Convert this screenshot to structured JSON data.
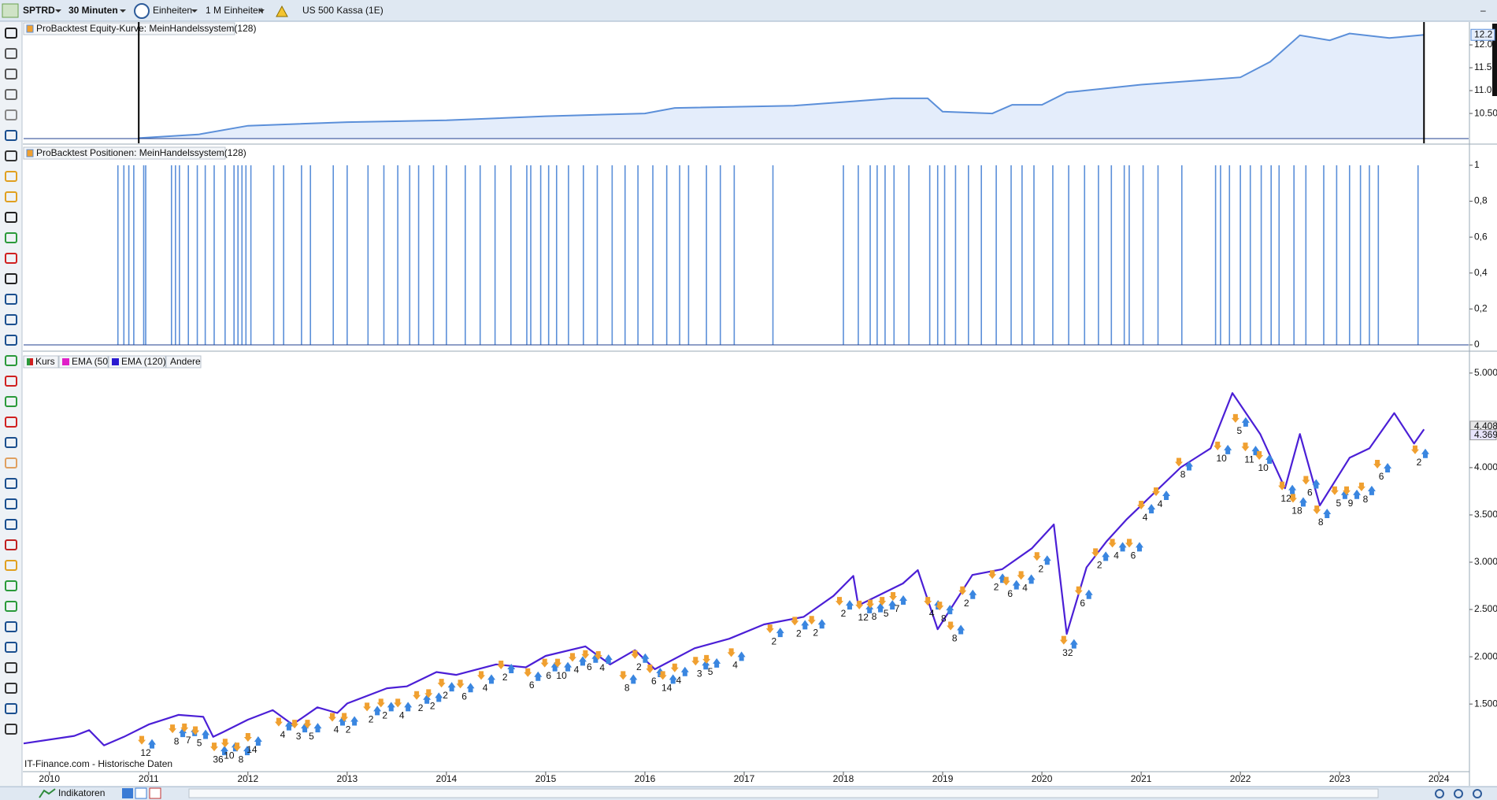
{
  "toolbar": {
    "symbol": "SPTRD",
    "timeframe": "30 Minuten",
    "units": "Einheiten",
    "units_count": "1 M Einheiten",
    "instrument": "US 500 Kassa (1E)"
  },
  "chart_data": [
    {
      "type": "area",
      "title": "ProBacktest Equity-Kurve: MeinHandelssystem(128)",
      "color": "#5b8fd9",
      "fill": "#e4edfb",
      "x": [
        2010.9,
        2011.5,
        2012.0,
        2013.0,
        2014.0,
        2015.0,
        2016.0,
        2016.3,
        2017.5,
        2018.0,
        2018.5,
        2018.85,
        2019.0,
        2019.5,
        2019.7,
        2020.0,
        2020.25,
        2021.0,
        2021.5,
        2022.0,
        2022.3,
        2022.6,
        2022.9,
        2023.1,
        2023.5,
        2023.85
      ],
      "values": [
        9.96,
        10.04,
        10.23,
        10.31,
        10.35,
        10.44,
        10.5,
        10.62,
        10.67,
        10.75,
        10.83,
        10.83,
        10.54,
        10.5,
        10.69,
        10.69,
        10.96,
        11.13,
        11.21,
        11.29,
        11.63,
        12.21,
        12.1,
        12.25,
        12.15,
        12.22
      ],
      "xlim": [
        2009.74,
        2024.3
      ],
      "ylim": [
        9.95,
        12.5
      ],
      "yticks": [
        {
          "value": 12,
          "label": "12.0"
        },
        11.5,
        {
          "value": 11,
          "label": "11.0"
        },
        {
          "value": 10.5,
          "label": "10.50"
        }
      ],
      "last_value_label": {
        "value": 12.22,
        "label": "12.2"
      }
    },
    {
      "type": "spikes",
      "title": "ProBacktest Positionen: MeinHandelssystem(128)",
      "color": "#5b8fd9",
      "x": [
        2010.69,
        2010.75,
        2010.8,
        2010.85,
        2010.95,
        2010.97,
        2011.23,
        2011.27,
        2011.31,
        2011.4,
        2011.49,
        2011.57,
        2011.66,
        2011.77,
        2011.86,
        2011.9,
        2011.94,
        2011.98,
        2012.03,
        2012.26,
        2012.36,
        2012.54,
        2012.63,
        2012.86,
        2013.0,
        2013.21,
        2013.37,
        2013.51,
        2013.63,
        2013.72,
        2013.87,
        2014.0,
        2014.19,
        2014.34,
        2014.49,
        2014.65,
        2014.81,
        2014.85,
        2014.95,
        2015.03,
        2015.11,
        2015.23,
        2015.38,
        2015.52,
        2015.67,
        2015.8,
        2015.93,
        2016.08,
        2016.22,
        2016.35,
        2016.44,
        2016.62,
        2016.76,
        2016.9,
        2017.29,
        2018.0,
        2018.15,
        2018.27,
        2018.34,
        2018.42,
        2018.51,
        2018.66,
        2018.87,
        2018.95,
        2019.02,
        2019.13,
        2019.26,
        2019.39,
        2019.54,
        2019.69,
        2019.8,
        2019.92,
        2020.11,
        2020.27,
        2020.43,
        2020.57,
        2020.7,
        2020.83,
        2020.88,
        2021.02,
        2021.17,
        2021.41,
        2021.75,
        2021.8,
        2021.89,
        2022.0,
        2022.1,
        2022.21,
        2022.31,
        2022.39,
        2022.54,
        2022.66,
        2022.84,
        2022.97,
        2023.1,
        2023.21,
        2023.3,
        2023.39,
        2023.79
      ],
      "values": [
        1,
        1,
        1,
        1,
        1,
        1,
        1,
        1,
        1,
        1,
        1,
        1,
        1,
        1,
        1,
        1,
        1,
        1,
        1,
        1,
        1,
        1,
        1,
        1,
        1,
        1,
        1,
        1,
        1,
        1,
        1,
        1,
        1,
        1,
        1,
        1,
        1,
        1,
        1,
        1,
        1,
        1,
        1,
        1,
        1,
        1,
        1,
        1,
        1,
        1,
        1,
        1,
        1,
        1,
        1,
        1,
        1,
        1,
        1,
        1,
        1,
        1,
        1,
        1,
        1,
        1,
        1,
        1,
        1,
        1,
        1,
        1,
        1,
        1,
        1,
        1,
        1,
        1,
        1,
        1,
        1,
        1,
        1,
        1,
        1,
        1,
        1,
        1,
        1,
        1,
        1,
        1,
        1,
        1,
        1,
        1,
        1,
        1,
        1
      ],
      "xlim": [
        2009.74,
        2024.3
      ],
      "ylim": [
        0,
        1.096
      ],
      "yticks": [
        1,
        {
          "value": 0.8,
          "label": "0,8"
        },
        {
          "value": 0.6,
          "label": "0,6"
        },
        {
          "value": 0.4,
          "label": "0,4"
        },
        {
          "value": 0.2,
          "label": "0,2"
        },
        0
      ]
    },
    {
      "type": "line",
      "x": [
        2009.74,
        2010.25,
        2010.4,
        2010.55,
        2010.75,
        2011.0,
        2011.3,
        2011.55,
        2011.65,
        2011.75,
        2012.0,
        2012.25,
        2012.45,
        2012.7,
        2012.9,
        2013.0,
        2013.4,
        2013.6,
        2013.9,
        2014.1,
        2014.5,
        2014.8,
        2015.0,
        2015.4,
        2015.65,
        2015.9,
        2016.1,
        2016.5,
        2016.85,
        2017.2,
        2017.6,
        2017.9,
        2018.1,
        2018.15,
        2018.6,
        2018.75,
        2018.95,
        2019.3,
        2019.6,
        2019.9,
        2020.12,
        2020.25,
        2020.45,
        2020.65,
        2020.85,
        2021.0,
        2021.4,
        2021.7,
        2021.92,
        2022.2,
        2022.45,
        2022.6,
        2022.8,
        2023.1,
        2023.3,
        2023.55,
        2023.75,
        2023.85
      ],
      "series": [
        {
          "name": "Kurs",
          "color": "#4b1fd6",
          "values": [
            1083,
            1163,
            1224,
            1063,
            1153,
            1284,
            1385,
            1365,
            1153,
            1204,
            1335,
            1435,
            1284,
            1465,
            1405,
            1506,
            1667,
            1687,
            1838,
            1808,
            1919,
            1888,
            2009,
            2110,
            1919,
            2070,
            1868,
            2090,
            2191,
            2342,
            2422,
            2644,
            2855,
            2543,
            2775,
            2916,
            2291,
            2865,
            2926,
            3147,
            3399,
            2241,
            2946,
            3218,
            3449,
            3600,
            4003,
            4204,
            4789,
            4356,
            3782,
            4356,
            3600,
            4104,
            4204,
            4577,
            4255,
            4406
          ]
        }
      ],
      "indicators": [
        {
          "name": "EMA (50)",
          "color": "#e020c8"
        },
        {
          "name": "EMA (120)",
          "color": "#2a1ad0"
        }
      ],
      "other": "Andere",
      "xlim": [
        2009.74,
        2024.3
      ],
      "ylim": [
        785,
        5190
      ],
      "xticks": [
        2010,
        2011,
        2012,
        2013,
        2014,
        2015,
        2016,
        2017,
        2018,
        2019,
        2020,
        2021,
        2022,
        2023,
        2024
      ],
      "yticks": [
        {
          "value": 5000,
          "label": "5.000"
        },
        {
          "value": 4000,
          "label": "4.000"
        },
        {
          "value": 3500,
          "label": "3.500"
        },
        {
          "value": 3000,
          "label": "3.000"
        },
        {
          "value": 2500,
          "label": "2.500"
        },
        {
          "value": 2000,
          "label": "2.000"
        },
        {
          "value": 1500,
          "label": "1.500"
        }
      ],
      "last_price_labels": [
        {
          "value": 4408,
          "label": "4.408"
        },
        {
          "value": 4369,
          "label": "4.369"
        }
      ],
      "trades": {
        "x": [
          2010.97,
          2011.28,
          2011.4,
          2011.51,
          2011.7,
          2011.81,
          2011.93,
          2012.04,
          2012.35,
          2012.51,
          2012.64,
          2012.89,
          2013.01,
          2013.24,
          2013.38,
          2013.55,
          2013.74,
          2013.86,
          2013.99,
          2014.18,
          2014.39,
          2014.59,
          2014.86,
          2015.03,
          2015.16,
          2015.31,
          2015.44,
          2015.57,
          2015.82,
          2015.94,
          2016.09,
          2016.22,
          2016.34,
          2016.55,
          2016.66,
          2016.91,
          2017.3,
          2017.55,
          2017.72,
          2018.0,
          2018.2,
          2018.31,
          2018.43,
          2018.54,
          2018.89,
          2019.01,
          2019.12,
          2019.24,
          2019.54,
          2019.68,
          2019.83,
          2019.99,
          2020.26,
          2020.41,
          2020.58,
          2020.75,
          2020.92,
          2021.04,
          2021.19,
          2021.42,
          2021.81,
          2021.99,
          2022.09,
          2022.23,
          2022.46,
          2022.57,
          2022.7,
          2022.81,
          2022.99,
          2023.11,
          2023.26,
          2023.42,
          2023.8
        ],
        "price": [
          1113,
          1234,
          1244,
          1214,
          1042,
          1083,
          1042,
          1143,
          1304,
          1284,
          1284,
          1355,
          1355,
          1465,
          1506,
          1506,
          1586,
          1606,
          1717,
          1707,
          1798,
          1909,
          1828,
          1929,
          1929,
          1989,
          2019,
          2009,
          1798,
          2019,
          1868,
          1798,
          1878,
          1949,
          1969,
          2039,
          2291,
          2372,
          2382,
          2583,
          2543,
          2553,
          2583,
          2634,
          2583,
          2533,
          2321,
          2694,
          2865,
          2795,
          2855,
          3056,
          2170,
          2694,
          3097,
          3197,
          3197,
          3600,
          3741,
          4053,
          4225,
          4517,
          4215,
          4124,
          3802,
          3671,
          3862,
          3550,
          3751,
          3751,
          3792,
          4033,
          4184
        ],
        "counts": [
          12,
          8,
          7,
          5,
          36,
          10,
          8,
          14,
          4,
          3,
          5,
          4,
          2,
          2,
          2,
          4,
          2,
          2,
          2,
          6,
          4,
          2,
          6,
          6,
          10,
          4,
          6,
          4,
          8,
          2,
          6,
          14,
          4,
          3,
          5,
          4,
          2,
          2,
          2,
          2,
          12,
          8,
          5,
          7,
          4,
          8,
          8,
          2,
          2,
          6,
          4,
          2,
          32,
          6,
          2,
          4,
          6,
          4,
          4,
          8,
          10,
          5,
          11,
          10,
          12,
          18,
          6,
          8,
          5,
          9,
          8,
          6,
          2
        ]
      },
      "source": "IT-Finance.com - Historische Daten"
    }
  ],
  "bottom_bar": {
    "indicators": "Indikatoren"
  }
}
